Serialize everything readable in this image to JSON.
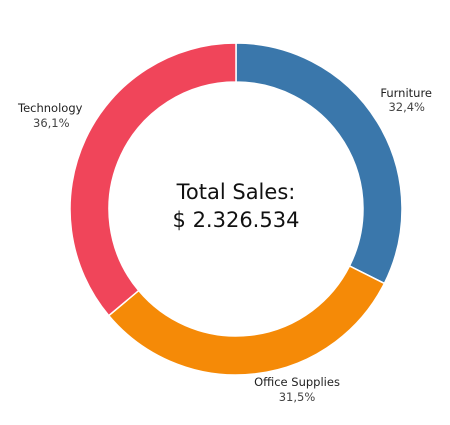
{
  "chart_data": {
    "type": "pie",
    "subtype": "donut",
    "center_text": {
      "title": "Total Sales:",
      "value": "$ 2.326.534"
    },
    "slices": [
      {
        "name": "Furniture",
        "value": 32.4,
        "label": "32,4%",
        "color": "#3a77ab"
      },
      {
        "name": "Office Supplies",
        "value": 31.5,
        "label": "31,5%",
        "color": "#f58a07"
      },
      {
        "name": "Technology",
        "value": 36.1,
        "label": "36,1%",
        "color": "#f0455a"
      }
    ],
    "start_angle_deg": 0,
    "direction": "clockwise",
    "legend": "none"
  }
}
